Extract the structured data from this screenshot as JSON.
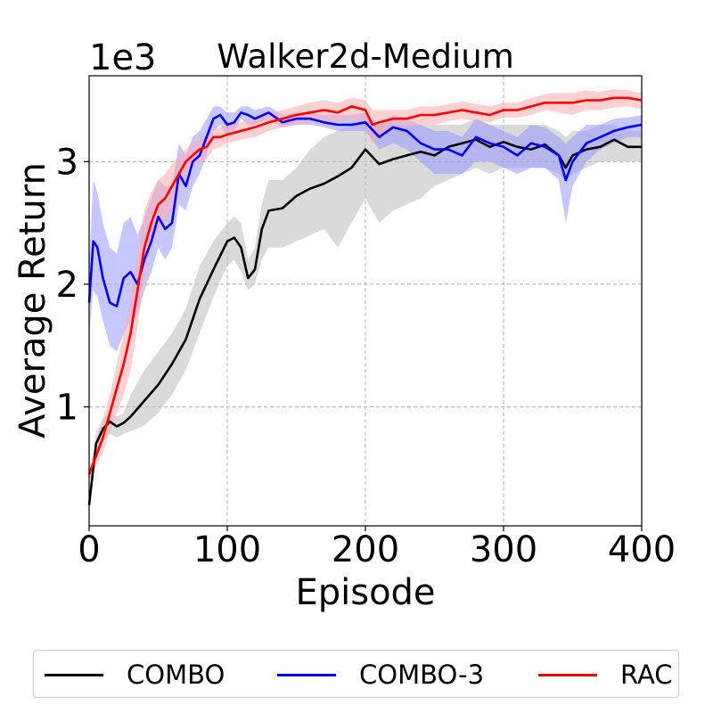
{
  "chart_data": {
    "type": "line",
    "title": "Walker2d-Medium",
    "xlabel": "Episode",
    "ylabel": "Average Return",
    "y_scale_label": "1e3",
    "xlim": [
      0,
      400
    ],
    "ylim": [
      0.03,
      3.7
    ],
    "xticks": [
      0,
      100,
      200,
      300,
      400
    ],
    "xtick_labels": [
      "0",
      "100",
      "200",
      "300",
      "400"
    ],
    "yticks": [
      1,
      2,
      3
    ],
    "ytick_labels": [
      "1",
      "2",
      "3"
    ],
    "grid": true,
    "legend": {
      "placement": "bottom-outside"
    },
    "series": [
      {
        "name": "COMBO",
        "color": "#000000",
        "band_color": "#bbbbbb",
        "x": [
          0,
          5,
          10,
          15,
          20,
          25,
          30,
          40,
          50,
          60,
          70,
          80,
          90,
          100,
          105,
          110,
          115,
          120,
          125,
          130,
          140,
          150,
          160,
          170,
          180,
          190,
          200,
          210,
          220,
          230,
          240,
          250,
          260,
          270,
          280,
          290,
          300,
          310,
          320,
          330,
          340,
          345,
          350,
          360,
          370,
          380,
          390,
          400
        ],
        "y": [
          0.2,
          0.7,
          0.82,
          0.88,
          0.84,
          0.87,
          0.92,
          1.05,
          1.18,
          1.35,
          1.55,
          1.88,
          2.12,
          2.35,
          2.38,
          2.3,
          2.05,
          2.12,
          2.45,
          2.6,
          2.62,
          2.72,
          2.78,
          2.82,
          2.88,
          2.95,
          3.1,
          2.98,
          3.02,
          3.05,
          3.08,
          3.05,
          3.12,
          3.15,
          3.18,
          3.12,
          3.16,
          3.12,
          3.1,
          3.14,
          3.05,
          2.95,
          3.05,
          3.1,
          3.12,
          3.18,
          3.12,
          3.12
        ],
        "lower": [
          0.15,
          0.6,
          0.72,
          0.78,
          0.75,
          0.78,
          0.8,
          0.85,
          0.95,
          1.1,
          1.3,
          1.6,
          1.9,
          2.15,
          2.2,
          2.1,
          1.95,
          2.0,
          2.2,
          2.3,
          2.3,
          2.35,
          2.4,
          2.45,
          2.3,
          2.5,
          2.7,
          2.5,
          2.6,
          2.65,
          2.7,
          2.8,
          2.85,
          2.9,
          2.95,
          2.9,
          2.95,
          2.95,
          2.95,
          2.95,
          2.9,
          2.85,
          2.9,
          2.95,
          3.0,
          3.0,
          3.0,
          3.0
        ],
        "upper": [
          0.25,
          0.8,
          0.9,
          0.95,
          0.92,
          0.95,
          1.1,
          1.3,
          1.45,
          1.6,
          1.8,
          2.15,
          2.35,
          2.5,
          2.55,
          2.5,
          2.2,
          2.3,
          2.65,
          2.85,
          2.85,
          2.95,
          3.1,
          3.2,
          3.25,
          3.3,
          3.35,
          3.3,
          3.3,
          3.3,
          3.3,
          3.3,
          3.3,
          3.3,
          3.35,
          3.3,
          3.3,
          3.3,
          3.3,
          3.3,
          3.25,
          3.2,
          3.25,
          3.25,
          3.3,
          3.3,
          3.25,
          3.25
        ]
      },
      {
        "name": "COMBO-3",
        "color": "#0000ff",
        "band_color": "#9999ff",
        "x": [
          0,
          3,
          6,
          10,
          15,
          20,
          25,
          30,
          35,
          40,
          45,
          50,
          55,
          60,
          65,
          70,
          75,
          80,
          85,
          90,
          95,
          100,
          105,
          110,
          115,
          120,
          130,
          140,
          150,
          160,
          170,
          180,
          190,
          200,
          210,
          220,
          230,
          240,
          250,
          260,
          270,
          280,
          290,
          300,
          310,
          320,
          330,
          340,
          345,
          350,
          360,
          370,
          380,
          390,
          400
        ],
        "y": [
          1.85,
          2.35,
          2.3,
          2.05,
          1.85,
          1.82,
          2.05,
          2.1,
          2.0,
          2.2,
          2.35,
          2.55,
          2.45,
          2.5,
          2.9,
          2.8,
          3.0,
          3.05,
          3.2,
          3.35,
          3.38,
          3.3,
          3.32,
          3.4,
          3.38,
          3.35,
          3.4,
          3.32,
          3.35,
          3.35,
          3.32,
          3.3,
          3.3,
          3.32,
          3.2,
          3.28,
          3.25,
          3.15,
          3.1,
          3.1,
          3.05,
          3.2,
          3.15,
          3.12,
          3.05,
          3.15,
          3.12,
          3.05,
          2.85,
          3.0,
          3.15,
          3.2,
          3.25,
          3.28,
          3.3
        ],
        "lower": [
          1.6,
          1.95,
          1.9,
          1.7,
          1.5,
          1.45,
          1.6,
          1.7,
          1.75,
          1.95,
          2.1,
          2.3,
          2.2,
          2.3,
          2.65,
          2.6,
          2.8,
          2.9,
          3.05,
          3.25,
          3.3,
          3.2,
          3.25,
          3.35,
          3.3,
          3.3,
          3.35,
          3.28,
          3.3,
          3.3,
          3.28,
          3.25,
          3.25,
          3.25,
          3.1,
          3.15,
          3.1,
          3.0,
          2.9,
          2.9,
          2.9,
          3.0,
          3.0,
          2.95,
          2.9,
          2.95,
          2.95,
          2.85,
          2.5,
          2.8,
          3.0,
          3.1,
          3.15,
          3.2,
          3.2
        ],
        "upper": [
          2.15,
          2.85,
          2.75,
          2.5,
          2.3,
          2.25,
          2.5,
          2.55,
          2.4,
          2.55,
          2.7,
          2.85,
          2.8,
          2.8,
          3.15,
          3.05,
          3.2,
          3.25,
          3.35,
          3.45,
          3.45,
          3.4,
          3.4,
          3.45,
          3.45,
          3.42,
          3.45,
          3.38,
          3.4,
          3.4,
          3.38,
          3.38,
          3.38,
          3.4,
          3.3,
          3.38,
          3.35,
          3.3,
          3.25,
          3.25,
          3.2,
          3.35,
          3.3,
          3.25,
          3.2,
          3.3,
          3.28,
          3.2,
          3.15,
          3.2,
          3.3,
          3.3,
          3.35,
          3.36,
          3.38
        ]
      },
      {
        "name": "RAC",
        "color": "#ff0000",
        "band_color": "#ffaaaa",
        "x": [
          0,
          5,
          10,
          15,
          20,
          25,
          30,
          35,
          40,
          45,
          50,
          55,
          60,
          65,
          70,
          75,
          80,
          85,
          90,
          95,
          100,
          110,
          120,
          130,
          140,
          150,
          160,
          170,
          180,
          190,
          200,
          205,
          210,
          220,
          230,
          240,
          250,
          260,
          270,
          280,
          290,
          300,
          310,
          320,
          330,
          340,
          350,
          360,
          370,
          380,
          390,
          400
        ],
        "y": [
          0.45,
          0.6,
          0.75,
          0.95,
          1.15,
          1.35,
          1.6,
          1.95,
          2.3,
          2.5,
          2.65,
          2.7,
          2.8,
          2.9,
          3.0,
          3.05,
          3.1,
          3.12,
          3.2,
          3.2,
          3.22,
          3.25,
          3.28,
          3.32,
          3.35,
          3.38,
          3.4,
          3.42,
          3.4,
          3.45,
          3.42,
          3.3,
          3.32,
          3.35,
          3.35,
          3.38,
          3.38,
          3.4,
          3.42,
          3.4,
          3.38,
          3.42,
          3.42,
          3.45,
          3.48,
          3.48,
          3.48,
          3.5,
          3.5,
          3.52,
          3.52,
          3.5
        ],
        "lower": [
          0.4,
          0.52,
          0.62,
          0.8,
          0.95,
          1.1,
          1.3,
          1.65,
          2.05,
          2.3,
          2.45,
          2.5,
          2.6,
          2.75,
          2.9,
          2.95,
          3.0,
          3.02,
          3.1,
          3.12,
          3.15,
          3.18,
          3.2,
          3.25,
          3.28,
          3.3,
          3.32,
          3.34,
          3.32,
          3.36,
          3.3,
          3.15,
          3.22,
          3.28,
          3.28,
          3.3,
          3.3,
          3.33,
          3.35,
          3.33,
          3.32,
          3.36,
          3.36,
          3.38,
          3.42,
          3.4,
          3.38,
          3.42,
          3.42,
          3.44,
          3.45,
          3.43
        ],
        "upper": [
          0.5,
          0.68,
          0.9,
          1.1,
          1.35,
          1.6,
          1.9,
          2.25,
          2.6,
          2.75,
          2.85,
          2.9,
          2.98,
          3.05,
          3.1,
          3.15,
          3.18,
          3.2,
          3.28,
          3.28,
          3.3,
          3.32,
          3.36,
          3.4,
          3.42,
          3.45,
          3.48,
          3.5,
          3.48,
          3.52,
          3.5,
          3.42,
          3.42,
          3.42,
          3.42,
          3.45,
          3.45,
          3.47,
          3.49,
          3.47,
          3.45,
          3.48,
          3.48,
          3.52,
          3.55,
          3.56,
          3.56,
          3.58,
          3.57,
          3.59,
          3.58,
          3.56
        ]
      }
    ]
  }
}
